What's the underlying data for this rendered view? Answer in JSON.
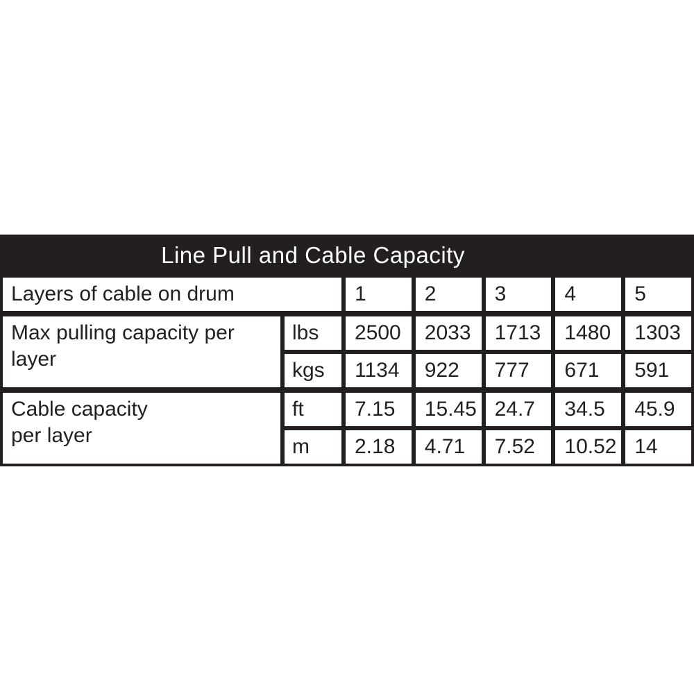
{
  "colors": {
    "table_black": "#231f20",
    "cell_white": "#ffffff",
    "text": "#231f20",
    "title_text": "#ffffff"
  },
  "table": {
    "title": "Line Pull and Cable Capacity",
    "layers_row": {
      "label": "Layers of cable on drum",
      "values": [
        "1",
        "2",
        "3",
        "4",
        "5"
      ]
    },
    "sections": [
      {
        "label": "Max pulling capacity per\nlayer",
        "rows": [
          {
            "unit": "lbs",
            "values": [
              "2500",
              "2033",
              "1713",
              "1480",
              "1303"
            ]
          },
          {
            "unit": "kgs",
            "values": [
              "1134",
              "922",
              "777",
              "671",
              "591"
            ]
          }
        ]
      },
      {
        "label": "Cable capacity\n per layer",
        "rows": [
          {
            "unit": "ft",
            "values": [
              "7.15",
              "15.45",
              "24.7",
              "34.5",
              "45.9"
            ]
          },
          {
            "unit": "m",
            "values": [
              "2.18",
              "4.71",
              "7.52",
              "10.52",
              "14"
            ]
          }
        ]
      }
    ]
  },
  "chart_data": {
    "type": "table",
    "title": "Line Pull and Cable Capacity",
    "columns": [
      "Layers of cable on drum",
      "1",
      "2",
      "3",
      "4",
      "5"
    ],
    "rows": [
      {
        "label": "Max pulling capacity per layer",
        "unit": "lbs",
        "values": [
          2500,
          2033,
          1713,
          1480,
          1303
        ]
      },
      {
        "label": "Max pulling capacity per layer",
        "unit": "kgs",
        "values": [
          1134,
          922,
          777,
          671,
          591
        ]
      },
      {
        "label": "Cable capacity per layer",
        "unit": "ft",
        "values": [
          7.15,
          15.45,
          24.7,
          34.5,
          45.9
        ]
      },
      {
        "label": "Cable capacity per layer",
        "unit": "m",
        "values": [
          2.18,
          4.71,
          7.52,
          10.52,
          14
        ]
      }
    ]
  }
}
